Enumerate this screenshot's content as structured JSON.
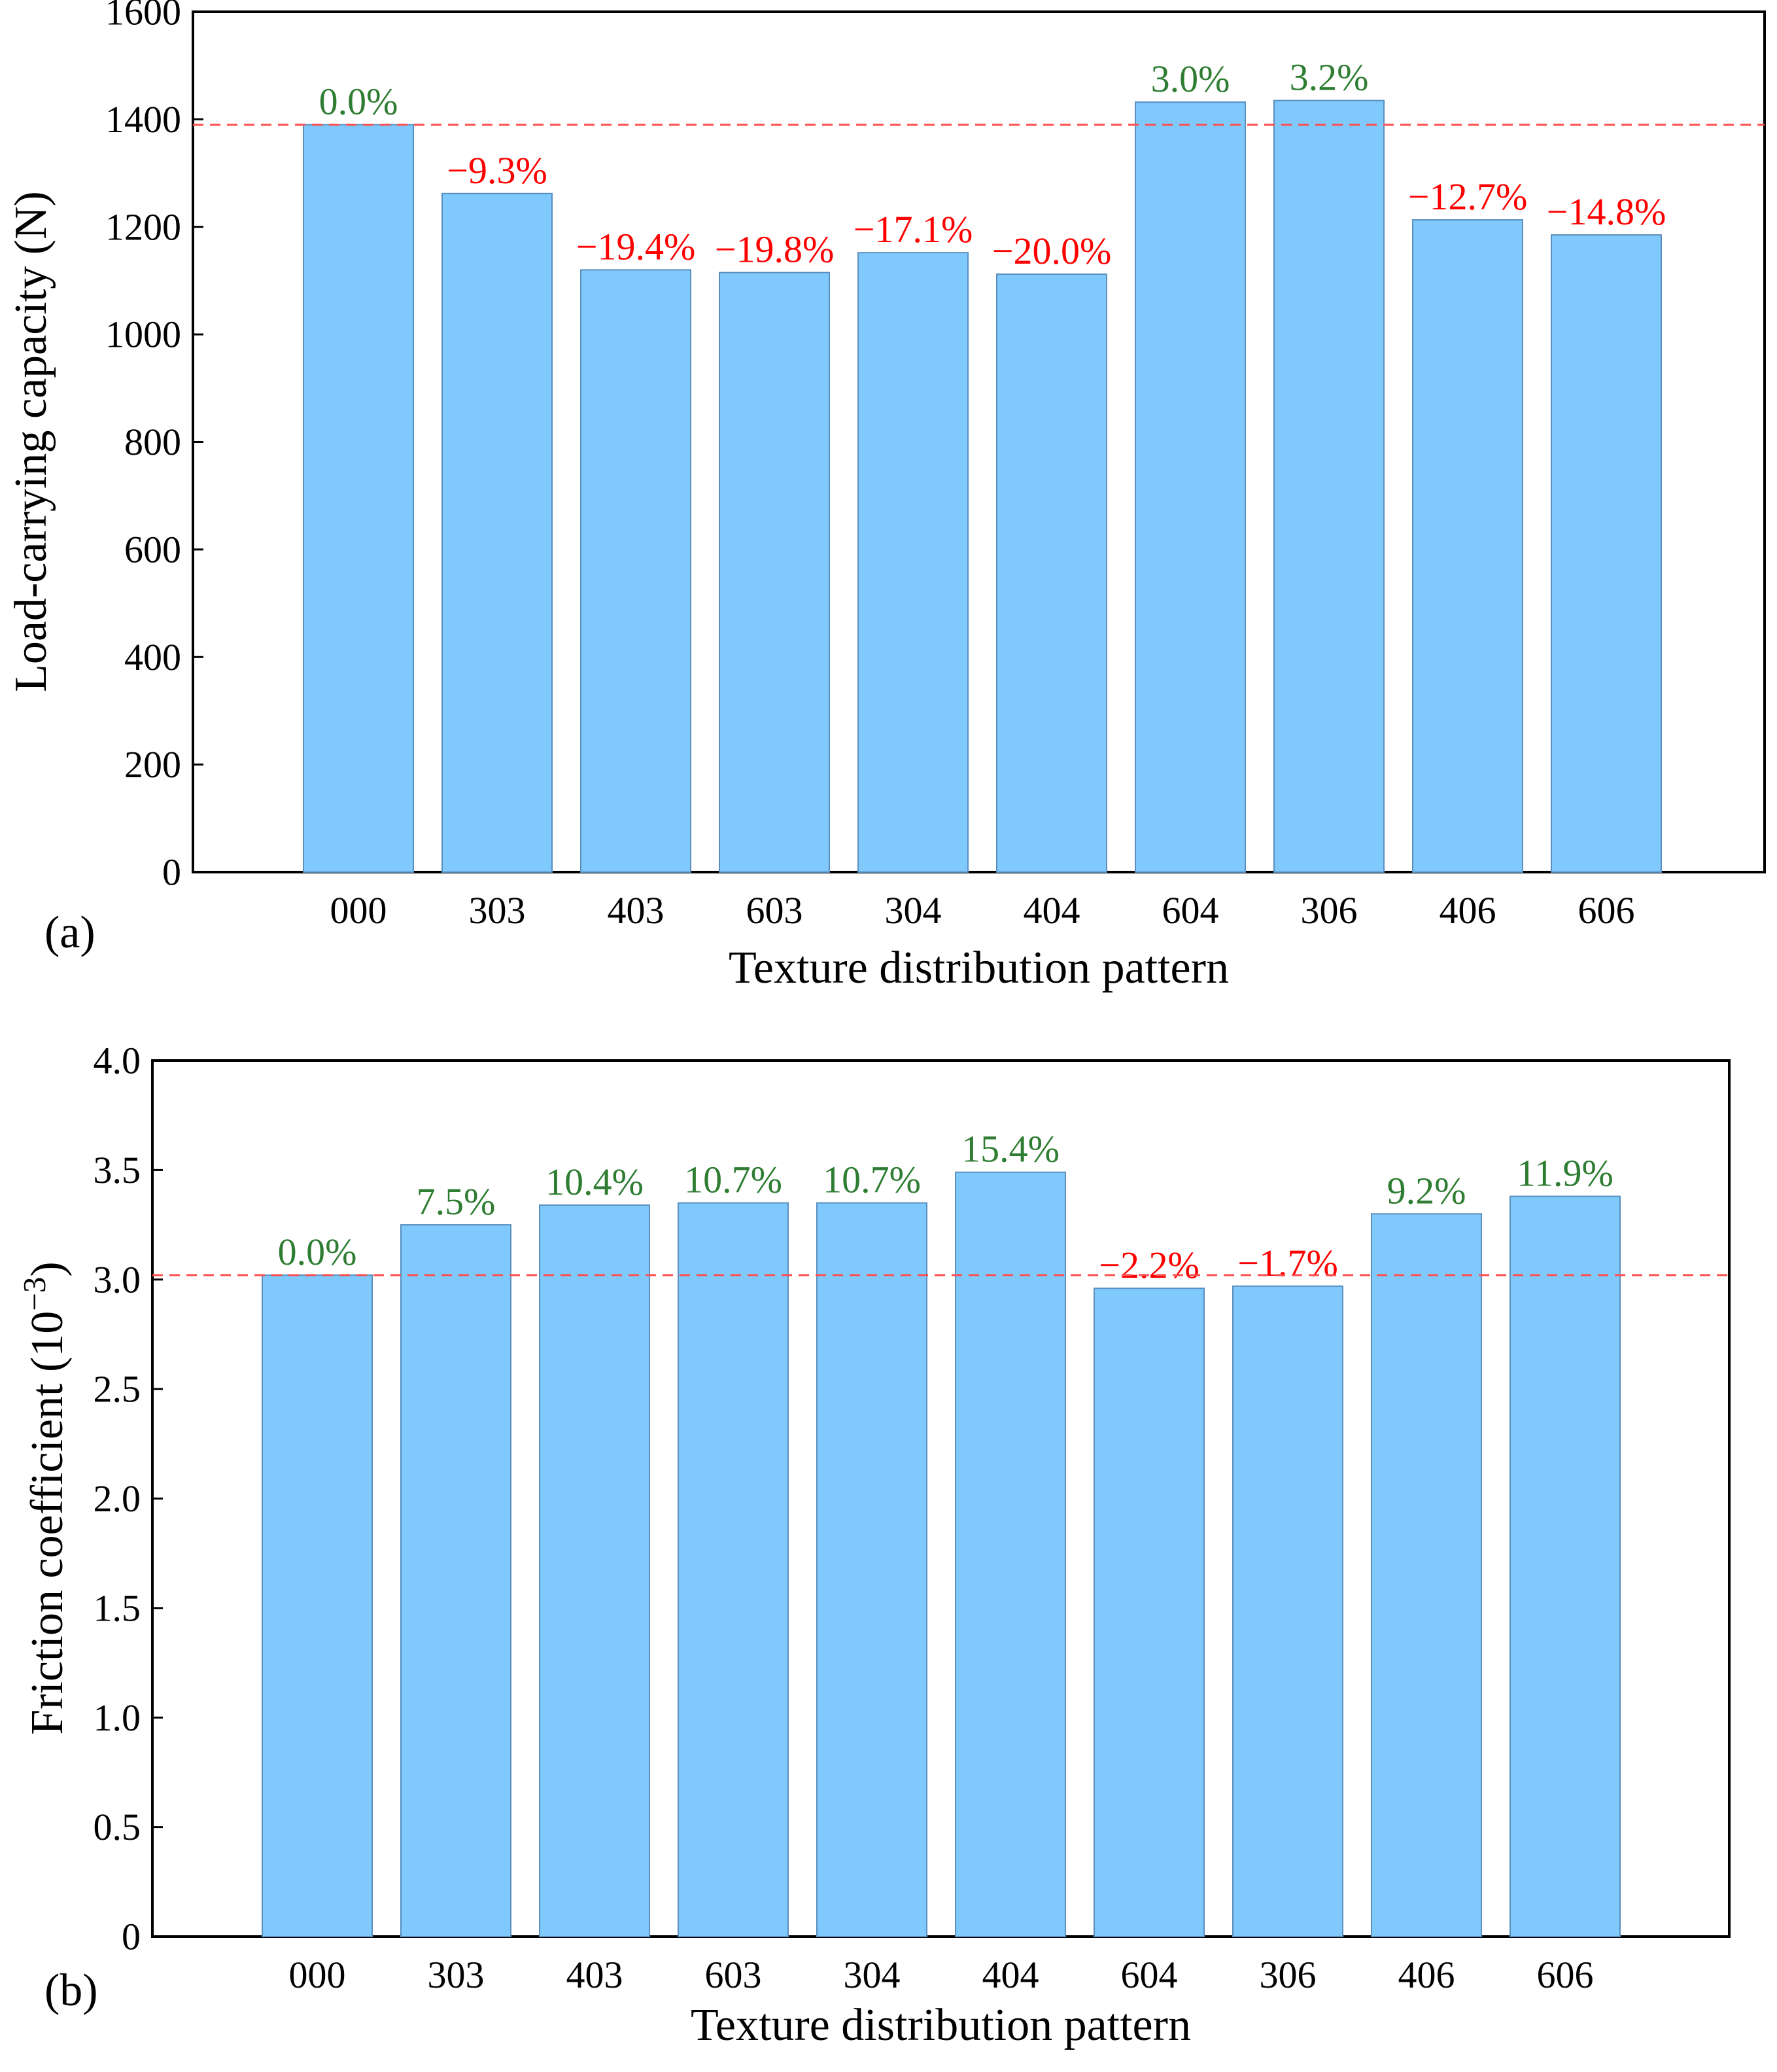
{
  "colors": {
    "bar_fill": "#80c9fc",
    "bar_stroke": "#5a8fbf",
    "positive": "#2e7d32",
    "negative": "#ff0000",
    "reference_line": "#ff4d4d",
    "axis": "#000000"
  },
  "chart_data": [
    {
      "type": "bar",
      "panel_label": "(a)",
      "xlabel": "Texture distribution pattern",
      "ylabel": "Load-carrying capacity (N)",
      "ylim": [
        0,
        1600
      ],
      "yticks": [
        0,
        200,
        400,
        600,
        800,
        1000,
        1200,
        1400,
        1600
      ],
      "ytick_labels": [
        "0",
        "200",
        "400",
        "600",
        "800",
        "1000",
        "1200",
        "1400",
        "1600"
      ],
      "categories": [
        "000",
        "303",
        "403",
        "603",
        "304",
        "404",
        "604",
        "306",
        "406",
        "606"
      ],
      "values": [
        1390,
        1262,
        1120,
        1115,
        1152,
        1112,
        1432,
        1435,
        1213,
        1185
      ],
      "data_labels": [
        "0.0%",
        "−9.3%",
        "−19.4%",
        "−19.8%",
        "−17.1%",
        "−20.0%",
        "3.0%",
        "3.2%",
        "−12.7%",
        "−14.8%"
      ],
      "reference_value": 1390,
      "reference_style": "dashed"
    },
    {
      "type": "bar",
      "panel_label": "(b)",
      "xlabel": "Texture distribution pattern",
      "ylabel": "Friction coefficient (10",
      "ylabel_superscript": "−3",
      "ylabel_suffix": ")",
      "ylim": [
        0,
        4.0
      ],
      "yticks": [
        0,
        0.5,
        1.0,
        1.5,
        2.0,
        2.5,
        3.0,
        3.5,
        4.0
      ],
      "ytick_labels": [
        "0",
        "0.5",
        "1.0",
        "1.5",
        "2.0",
        "2.5",
        "3.0",
        "3.5",
        "4.0"
      ],
      "categories": [
        "000",
        "303",
        "403",
        "603",
        "304",
        "404",
        "604",
        "306",
        "406",
        "606"
      ],
      "values": [
        3.02,
        3.25,
        3.34,
        3.35,
        3.35,
        3.49,
        2.96,
        2.97,
        3.3,
        3.38
      ],
      "data_labels": [
        "0.0%",
        "7.5%",
        "10.4%",
        "10.7%",
        "10.7%",
        "15.4%",
        "−2.2%",
        "−1.7%",
        "9.2%",
        "11.9%"
      ],
      "reference_value": 3.02,
      "reference_style": "dashed"
    }
  ]
}
